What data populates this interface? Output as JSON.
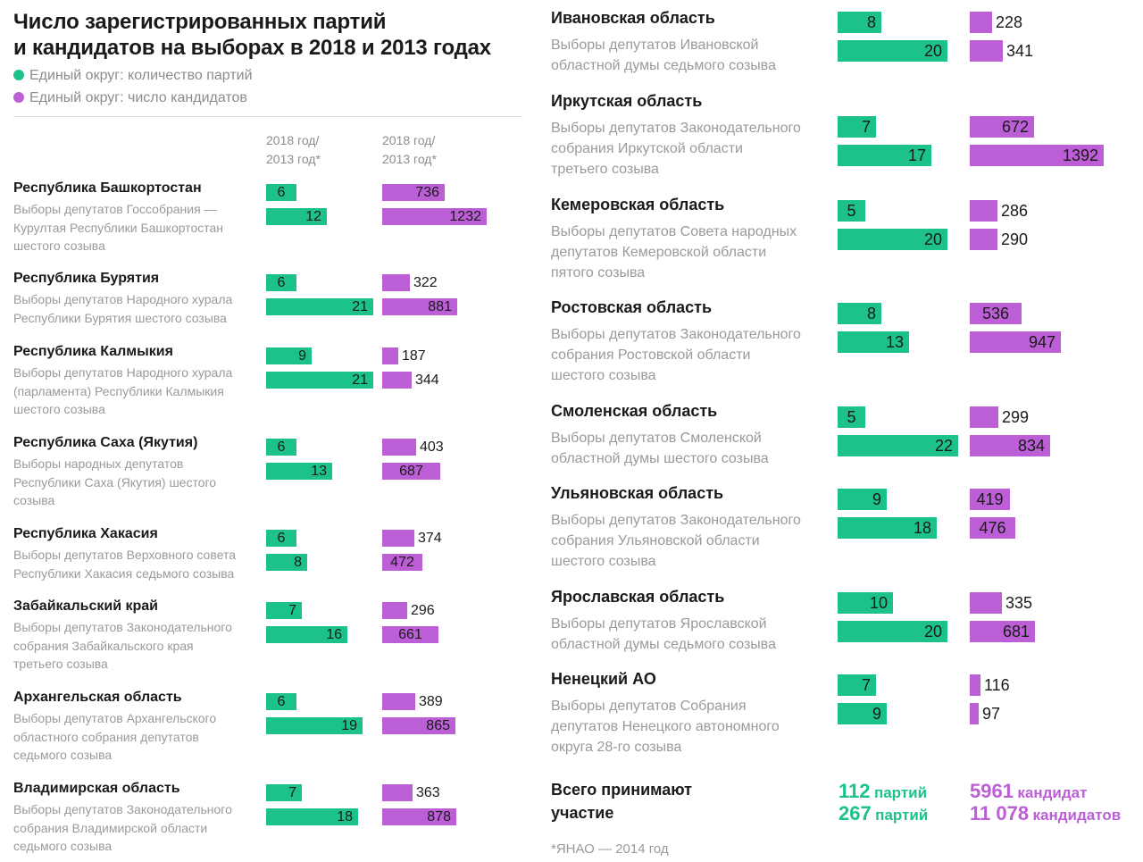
{
  "title": "Число зарегистрированных партий\nи кандидатов на выборах в 2018 и 2013 годах",
  "legend": [
    {
      "label": "Единый округ: количество партий",
      "color": "#1dc28a"
    },
    {
      "label": "Единый округ: число кандидатов",
      "color": "#bc5ed6"
    }
  ],
  "column_headers": {
    "parties": "2018 год/\n2013 год*",
    "candidates": "2018 год/\n2013 год*"
  },
  "chart_data": {
    "type": "bar",
    "title": "Число зарегистрированных партий и кандидатов на выборах в 2018 и 2013 годах",
    "series": [
      {
        "name": "Единый округ: количество партий",
        "color": "#1dc28a"
      },
      {
        "name": "Единый округ: число кандидатов",
        "color": "#bc5ed6"
      }
    ],
    "regions": [
      {
        "name": "Республика Башкортостан",
        "description": "Выборы депутатов Госсобрания —\nКурултая Республики Башкортостан\nшестого созыва",
        "parties": [
          6,
          12
        ],
        "candidates": [
          736,
          1232
        ]
      },
      {
        "name": "Республика Бурятия",
        "description": "Выборы депутатов Народного хурала\nРеспублики Бурятия шестого созыва",
        "parties": [
          6,
          21
        ],
        "candidates": [
          322,
          881
        ]
      },
      {
        "name": "Республика Калмыкия",
        "description": "Выборы депутатов Народного хурала\n(парламента) Республики Калмыкия\nшестого созыва",
        "parties": [
          9,
          21
        ],
        "candidates": [
          187,
          344
        ]
      },
      {
        "name": "Республика Саха (Якутия)",
        "description": "Выборы народных депутатов\nРеспублики Саха (Якутия) шестого\nсозыва",
        "parties": [
          6,
          13
        ],
        "candidates": [
          403,
          687
        ]
      },
      {
        "name": "Республика Хакасия",
        "description": "Выборы депутатов Верховного совета\nРеспублики Хакасия седьмого созыва",
        "parties": [
          6,
          8
        ],
        "candidates": [
          374,
          472
        ]
      },
      {
        "name": "Забайкальский край",
        "description": "Выборы депутатов Законодательного\nсобрания Забайкальского края\nтретьего созыва",
        "parties": [
          7,
          16
        ],
        "candidates": [
          296,
          661
        ]
      },
      {
        "name": "Архангельская область",
        "description": "Выборы депутатов Архангельского\nобластного собрания депутатов\nседьмого созыва",
        "parties": [
          6,
          19
        ],
        "candidates": [
          389,
          865
        ]
      },
      {
        "name": "Владимирская область",
        "description": "Выборы депутатов Законодательного\nсобрания Владимирской области\nседьмого созыва",
        "parties": [
          7,
          18
        ],
        "candidates": [
          363,
          878
        ]
      },
      {
        "name": "Ивановская область",
        "description": "Выборы депутатов Ивановской\nобластной думы седьмого созыва",
        "parties": [
          8,
          20
        ],
        "candidates": [
          228,
          341
        ]
      },
      {
        "name": "Иркутская область",
        "description": "Выборы депутатов Законодательного\nсобрания Иркутской области\nтретьего созыва",
        "parties": [
          7,
          17
        ],
        "candidates": [
          672,
          1392
        ]
      },
      {
        "name": "Кемеровская область",
        "description": "Выборы депутатов Совета народных\nдепутатов Кемеровской области\nпятого созыва",
        "parties": [
          5,
          20
        ],
        "candidates": [
          286,
          290
        ]
      },
      {
        "name": "Ростовская область",
        "description": "Выборы депутатов Законодательного\nсобрания Ростовской области\nшестого созыва",
        "parties": [
          8,
          13
        ],
        "candidates": [
          536,
          947
        ]
      },
      {
        "name": "Смоленская область",
        "description": "Выборы депутатов Смоленской\nобластной думы шестого созыва",
        "parties": [
          5,
          22
        ],
        "candidates": [
          299,
          834
        ]
      },
      {
        "name": "Ульяновская область",
        "description": "Выборы депутатов Законодательного\nсобрания Ульяновской области\nшестого созыва",
        "parties": [
          9,
          18
        ],
        "candidates": [
          419,
          476
        ]
      },
      {
        "name": "Ярославская область",
        "description": "Выборы депутатов Ярославской\nобластной думы седьмого созыва",
        "parties": [
          10,
          20
        ],
        "candidates": [
          335,
          681
        ]
      },
      {
        "name": "Ненецкий АО",
        "description": "Выборы депутатов Собрания\nдепутатов Ненецкого автономного\nокруга 28-го созыва",
        "parties": [
          7,
          9
        ],
        "candidates": [
          116,
          97
        ]
      }
    ]
  },
  "totals": {
    "label": "Всего принимают\nучастие",
    "parties": [
      {
        "number": "112",
        "unit": "партий"
      },
      {
        "number": "267",
        "unit": "партий"
      }
    ],
    "candidates": [
      {
        "number": "5961",
        "unit": "кандидат"
      },
      {
        "number": "11 078",
        "unit": "кандидатов"
      }
    ]
  },
  "footnote": "*ЯНАО — 2014 год"
}
